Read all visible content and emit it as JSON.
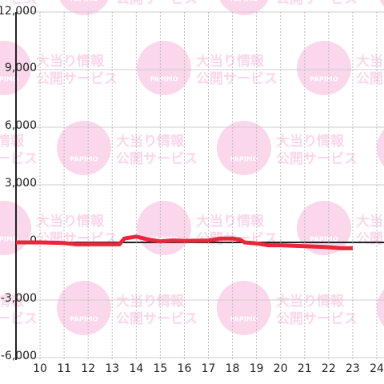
{
  "chart_data": {
    "type": "line",
    "x": [
      9,
      10,
      11,
      11.5,
      12,
      13,
      13.3,
      13.5,
      14,
      14.5,
      15,
      15.5,
      16,
      17,
      17.5,
      18,
      18.3,
      18.5,
      19,
      19.5,
      20,
      21,
      22,
      22.5,
      23
    ],
    "series": [
      {
        "color": "#e8283a",
        "values": [
          0,
          0,
          -30,
          -100,
          -100,
          -100,
          -100,
          200,
          300,
          150,
          50,
          100,
          80,
          100,
          200,
          200,
          150,
          0,
          -50,
          -150,
          -150,
          -200,
          -250,
          -300,
          -300
        ]
      }
    ],
    "xlim": [
      9,
      24.3
    ],
    "xticks": [
      10,
      11,
      12,
      13,
      14,
      15,
      16,
      17,
      18,
      19,
      20,
      21,
      22,
      23,
      24
    ],
    "ylim": [
      -6000,
      12000
    ],
    "yticks": [
      {
        "value": -6000,
        "label": "-6,000"
      },
      {
        "value": -3000,
        "label": "-3,000"
      },
      0,
      {
        "value": 3000,
        "label": "3,000"
      },
      {
        "value": 6000,
        "label": "6,000"
      },
      {
        "value": 9000,
        "label": "9,000"
      },
      {
        "value": 12000,
        "label": "12,000"
      }
    ],
    "grid": true
  },
  "watermark": {
    "brand": "PAPIMO",
    "line1": "大当り情報",
    "line2": "公開サービス"
  }
}
